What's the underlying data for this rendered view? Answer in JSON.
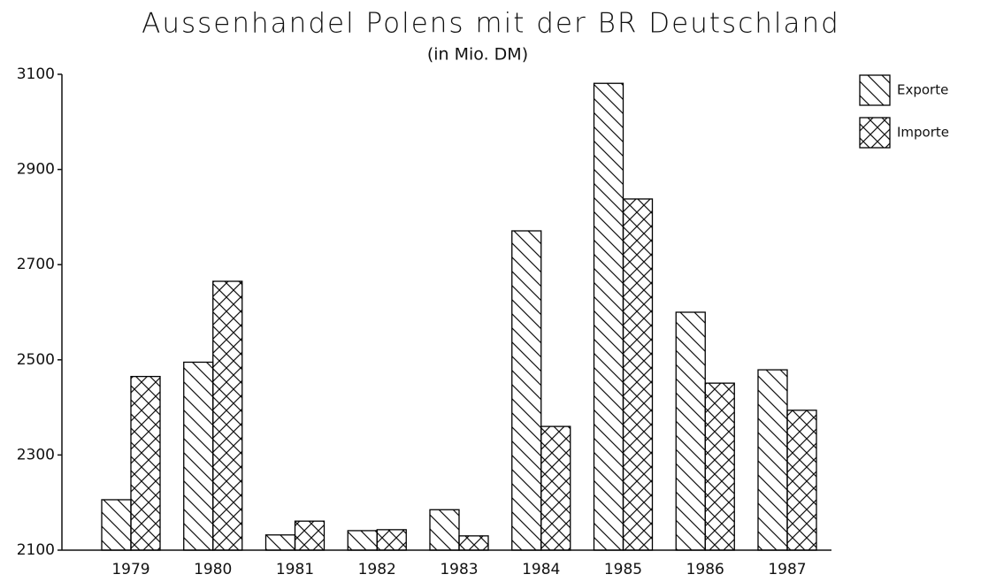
{
  "chart_data": {
    "type": "bar",
    "title": "Aussenhandel Polens mit der BR Deutschland",
    "subtitle": "(in Mio. DM)",
    "categories": [
      "1979",
      "1980",
      "1981",
      "1982",
      "1983",
      "1984",
      "1985",
      "1986",
      "1987"
    ],
    "series": [
      {
        "name": "Exporte",
        "color": "#000000",
        "values": [
          2206,
          2495,
          2132,
          2141,
          2185,
          2771,
          3081,
          2600,
          2479
        ]
      },
      {
        "name": "Importe",
        "color": "#000000",
        "values": [
          2465,
          2665,
          2161,
          2143,
          2130,
          2360,
          2838,
          2451,
          2394
        ]
      }
    ],
    "ylim": [
      2100,
      3100
    ],
    "yticks": [
      2100,
      2300,
      2500,
      2700,
      2900,
      3100
    ],
    "legend": "top-right",
    "grid": false
  }
}
